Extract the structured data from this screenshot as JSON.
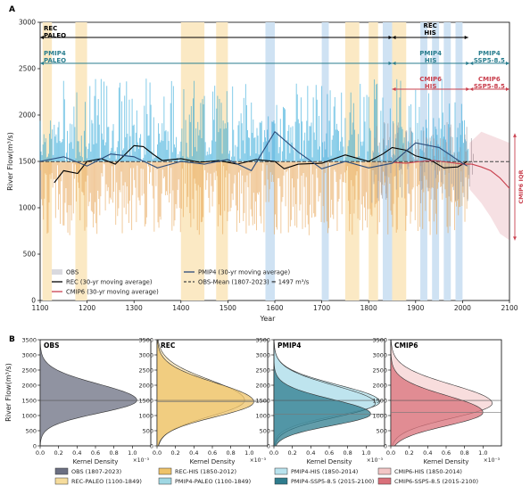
{
  "panel_a": {
    "label": "A",
    "chart_data": {
      "type": "line",
      "xlabel": "Year",
      "ylabel": "River Flow(m³/s)",
      "xlim": [
        1100,
        2100
      ],
      "ylim": [
        0,
        3000
      ],
      "xticks": [
        "1100",
        "1200",
        "1300",
        "1400",
        "1500",
        "1600",
        "1700",
        "1800",
        "1900",
        "2000",
        "2100"
      ],
      "yticks": [
        "0",
        "500",
        "1000",
        "1500",
        "2000",
        "2500",
        "3000"
      ],
      "periods": {
        "rec_paleo": "REC\nPALEO",
        "rec_his": "REC\nHIS",
        "pmip4_paleo": "PMIP4\nPALEO",
        "pmip4_his": "PMIP4\nHIS",
        "pmip4_ssp": "PMIP4\nSSP5-8.5",
        "cmip6_his": "CMIP6\nHIS",
        "cmip6_ssp": "CMIP6\nSSP5-8.5",
        "iqr": "CMIP6 IQR"
      },
      "drought_bands_years": [
        [
          1105,
          1125
        ],
        [
          1175,
          1200
        ],
        [
          1400,
          1450
        ],
        [
          1475,
          1500
        ],
        [
          1750,
          1780
        ],
        [
          1800,
          1820
        ],
        [
          1850,
          1880
        ]
      ],
      "wet_bands_years": [
        [
          1580,
          1600
        ],
        [
          1700,
          1715
        ],
        [
          1830,
          1850
        ],
        [
          1910,
          1925
        ],
        [
          1935,
          1950
        ],
        [
          1960,
          1975
        ],
        [
          1985,
          2000
        ]
      ],
      "series": [
        {
          "name": "REC (30-yr moving average)",
          "x": [
            1130,
            1150,
            1180,
            1200,
            1230,
            1260,
            1290,
            1300,
            1320,
            1340,
            1360,
            1400,
            1440,
            1480,
            1520,
            1560,
            1600,
            1620,
            1650,
            1700,
            1750,
            1800,
            1830,
            1850,
            1880,
            1900,
            1930,
            1960,
            1990,
            2010
          ],
          "y": [
            1270,
            1400,
            1370,
            1500,
            1530,
            1470,
            1620,
            1670,
            1660,
            1580,
            1510,
            1530,
            1490,
            1510,
            1470,
            1520,
            1500,
            1420,
            1470,
            1480,
            1570,
            1500,
            1580,
            1650,
            1620,
            1560,
            1520,
            1430,
            1440,
            1500
          ]
        },
        {
          "name": "CMIP6 (30-yr moving average)",
          "x": [
            1850,
            1880,
            1910,
            1940,
            1970,
            2000,
            2020,
            2040,
            2060,
            2080,
            2100
          ],
          "y": [
            1490,
            1480,
            1500,
            1510,
            1490,
            1470,
            1470,
            1440,
            1400,
            1320,
            1210
          ]
        },
        {
          "name": "PMIP4 (30-yr moving average)",
          "x": [
            1100,
            1150,
            1200,
            1250,
            1300,
            1350,
            1400,
            1450,
            1500,
            1550,
            1600,
            1650,
            1700,
            1750,
            1800,
            1850,
            1900,
            1950,
            2000,
            2010
          ],
          "y": [
            1500,
            1550,
            1450,
            1580,
            1550,
            1430,
            1500,
            1470,
            1520,
            1400,
            1820,
            1600,
            1420,
            1500,
            1430,
            1480,
            1700,
            1650,
            1480,
            1450
          ]
        }
      ],
      "reference_line": {
        "label": "OBS-Mean (1807-2023) = 1497 m³/s",
        "value": 1497
      },
      "legend": [
        "OBS",
        "REC (30-yr moving average)",
        "CMIP6 (30-yr moving average)",
        "PMIP4 (30-yr moving average)",
        "OBS-Mean (1807-2023) = 1497 m³/s"
      ],
      "colors": {
        "obs": "#9a9aa0",
        "rec": "#e6a04c",
        "pmip4": "#1fa1d6",
        "cmip6": "#c9404e",
        "drought": "#fbe9c4",
        "wet": "#cfe2f3"
      }
    }
  },
  "panel_b": {
    "label": "B",
    "chart_data": {
      "type": "area",
      "ylabel": "River Flow(m³/s)",
      "xlabel": "Kernel Density",
      "multiplier": "×10⁻³",
      "ylim": [
        0,
        3500
      ],
      "yticks": [
        "0",
        "500",
        "1000",
        "1500",
        "2000",
        "2500",
        "3000",
        "3500"
      ],
      "xticks": [
        "0.0",
        "0.2",
        "0.4",
        "0.6",
        "0.8",
        "1.0"
      ],
      "xlim": [
        0,
        1.2
      ],
      "mean": 1497,
      "panels": [
        {
          "title": "OBS",
          "series": [
            {
              "name": "OBS (1807-2023)",
              "mode": 1500,
              "spread": 480,
              "peak": 1.05
            }
          ]
        },
        {
          "title": "REC",
          "series": [
            {
              "name": "REC-PALEO (1100-1849)",
              "mode": 1500,
              "spread": 600,
              "peak": 0.95
            },
            {
              "name": "REC-HIS (1850-2012)",
              "mode": 1450,
              "spread": 560,
              "peak": 1.05
            }
          ]
        },
        {
          "title": "PMIP4",
          "series": [
            {
              "name": "PMIP4-PALEO (1100-1849)",
              "mode": 1450,
              "spread": 500,
              "peak": 1.15
            },
            {
              "name": "PMIP4-HIS (1850-2014)",
              "mode": 1400,
              "spread": 520,
              "peak": 1.1
            },
            {
              "name": "PMIP4-SSP5-8.5 (2015-2100)",
              "mode": 1050,
              "spread": 430,
              "peak": 1.05
            }
          ]
        },
        {
          "title": "CMIP6",
          "series": [
            {
              "name": "CMIP6-HIS (1850-2014)",
              "mode": 1400,
              "spread": 550,
              "peak": 1.1
            },
            {
              "name": "CMIP6-SSP5-8.5 (2015-2100)",
              "mode": 1100,
              "spread": 500,
              "peak": 1.0
            }
          ]
        }
      ],
      "legend": [
        "OBS (1807-2023)",
        "REC-PALEO (1100-1849)",
        "REC-HIS (1850-2012)",
        "PMIP4-PALEO (1100-1849)",
        "PMIP4-HIS (1850-2014)",
        "PMIP4-SSP5-8.5 (2015-2100)",
        "CMIP6-HIS (1850-2014)",
        "CMIP6-SSP5-8.5 (2015-2100)"
      ]
    }
  }
}
